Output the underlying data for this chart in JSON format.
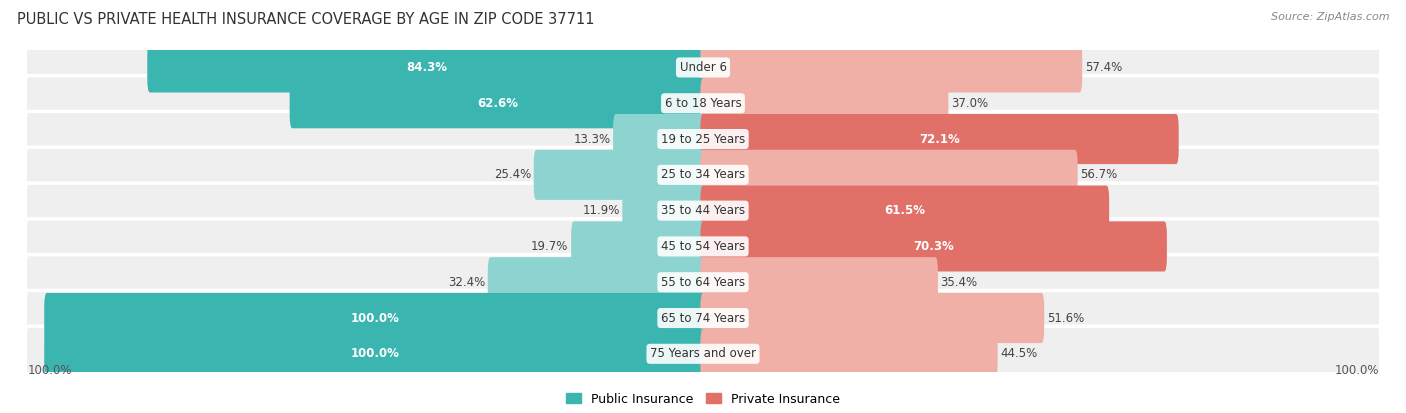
{
  "title": "PUBLIC VS PRIVATE HEALTH INSURANCE COVERAGE BY AGE IN ZIP CODE 37711",
  "source": "Source: ZipAtlas.com",
  "categories": [
    "Under 6",
    "6 to 18 Years",
    "19 to 25 Years",
    "25 to 34 Years",
    "35 to 44 Years",
    "45 to 54 Years",
    "55 to 64 Years",
    "65 to 74 Years",
    "75 Years and over"
  ],
  "public_values": [
    84.3,
    62.6,
    13.3,
    25.4,
    11.9,
    19.7,
    32.4,
    100.0,
    100.0
  ],
  "private_values": [
    57.4,
    37.0,
    72.1,
    56.7,
    61.5,
    70.3,
    35.4,
    51.6,
    44.5
  ],
  "public_color_dark": "#3ab5b0",
  "public_color_light": "#8dd4d1",
  "private_color_dark": "#e07068",
  "private_color_light": "#f0b0a8",
  "bg_row_color": "#efefef",
  "bg_alt_row_color": "#e8e8e8",
  "bg_color": "#ffffff",
  "max_val": 100.0,
  "title_fontsize": 10.5,
  "label_fontsize": 8.5,
  "source_fontsize": 8,
  "legend_fontsize": 9
}
